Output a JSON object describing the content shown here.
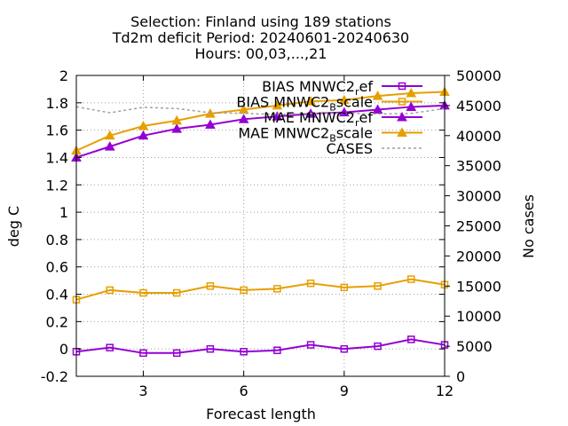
{
  "chart_data": {
    "type": "line",
    "title_lines": [
      "Selection: Finland using    189 stations",
      "Td2m deficit    Period: 20240601-20240630",
      "Hours: 00,03,...,21"
    ],
    "xlabel": "Forecast length",
    "ylabel": "deg C",
    "y2label": "No cases",
    "xlim": [
      1,
      12
    ],
    "ylim": [
      -0.2,
      2
    ],
    "y2lim": [
      0,
      50000
    ],
    "xticks": [
      "3",
      "6",
      "9",
      "12"
    ],
    "yticks": [
      "-0.2",
      "0",
      "0.2",
      "0.4",
      "0.6",
      "0.8",
      "1",
      "1.2",
      "1.4",
      "1.6",
      "1.8",
      "2"
    ],
    "y2ticks": [
      "0",
      "5000",
      "10000",
      "15000",
      "20000",
      "25000",
      "30000",
      "35000",
      "40000",
      "45000",
      "50000"
    ],
    "grid": true,
    "legend_position": "top-right",
    "x": [
      1,
      2,
      3,
      4,
      5,
      6,
      7,
      8,
      9,
      10,
      11,
      12
    ],
    "series": [
      {
        "name": "BIAS MNWC2",
        "name_sub": "r",
        "name_tail": "ef",
        "color": "#9400d3",
        "marker": "square",
        "axis": "y",
        "values": [
          -0.02,
          0.01,
          -0.03,
          -0.03,
          0.0,
          -0.02,
          -0.01,
          0.03,
          0.0,
          0.02,
          0.07,
          0.03
        ]
      },
      {
        "name": "BIAS MNWC2",
        "name_sub": "B",
        "name_tail": "scale",
        "color": "#e69f00",
        "marker": "square",
        "axis": "y",
        "values": [
          0.36,
          0.43,
          0.41,
          0.41,
          0.46,
          0.43,
          0.44,
          0.48,
          0.45,
          0.46,
          0.51,
          0.47
        ]
      },
      {
        "name": "MAE MNWC2",
        "name_sub": "r",
        "name_tail": "ef",
        "color": "#9400d3",
        "marker": "triangle",
        "axis": "y",
        "values": [
          1.4,
          1.48,
          1.56,
          1.61,
          1.64,
          1.68,
          1.7,
          1.72,
          1.73,
          1.75,
          1.77,
          1.78
        ]
      },
      {
        "name": "MAE MNWC2",
        "name_sub": "B",
        "name_tail": "scale",
        "color": "#e69f00",
        "marker": "triangle",
        "axis": "y",
        "values": [
          1.45,
          1.56,
          1.63,
          1.67,
          1.72,
          1.75,
          1.78,
          1.81,
          1.82,
          1.85,
          1.87,
          1.88
        ]
      },
      {
        "name": "CASES",
        "name_sub": "",
        "name_tail": "",
        "color": "#a0a0a0",
        "marker": "none",
        "dashed": true,
        "axis": "y2",
        "values": [
          44800,
          43800,
          44700,
          44500,
          43800,
          43700,
          43500,
          43700,
          43700,
          43600,
          43700,
          44500
        ]
      }
    ]
  }
}
